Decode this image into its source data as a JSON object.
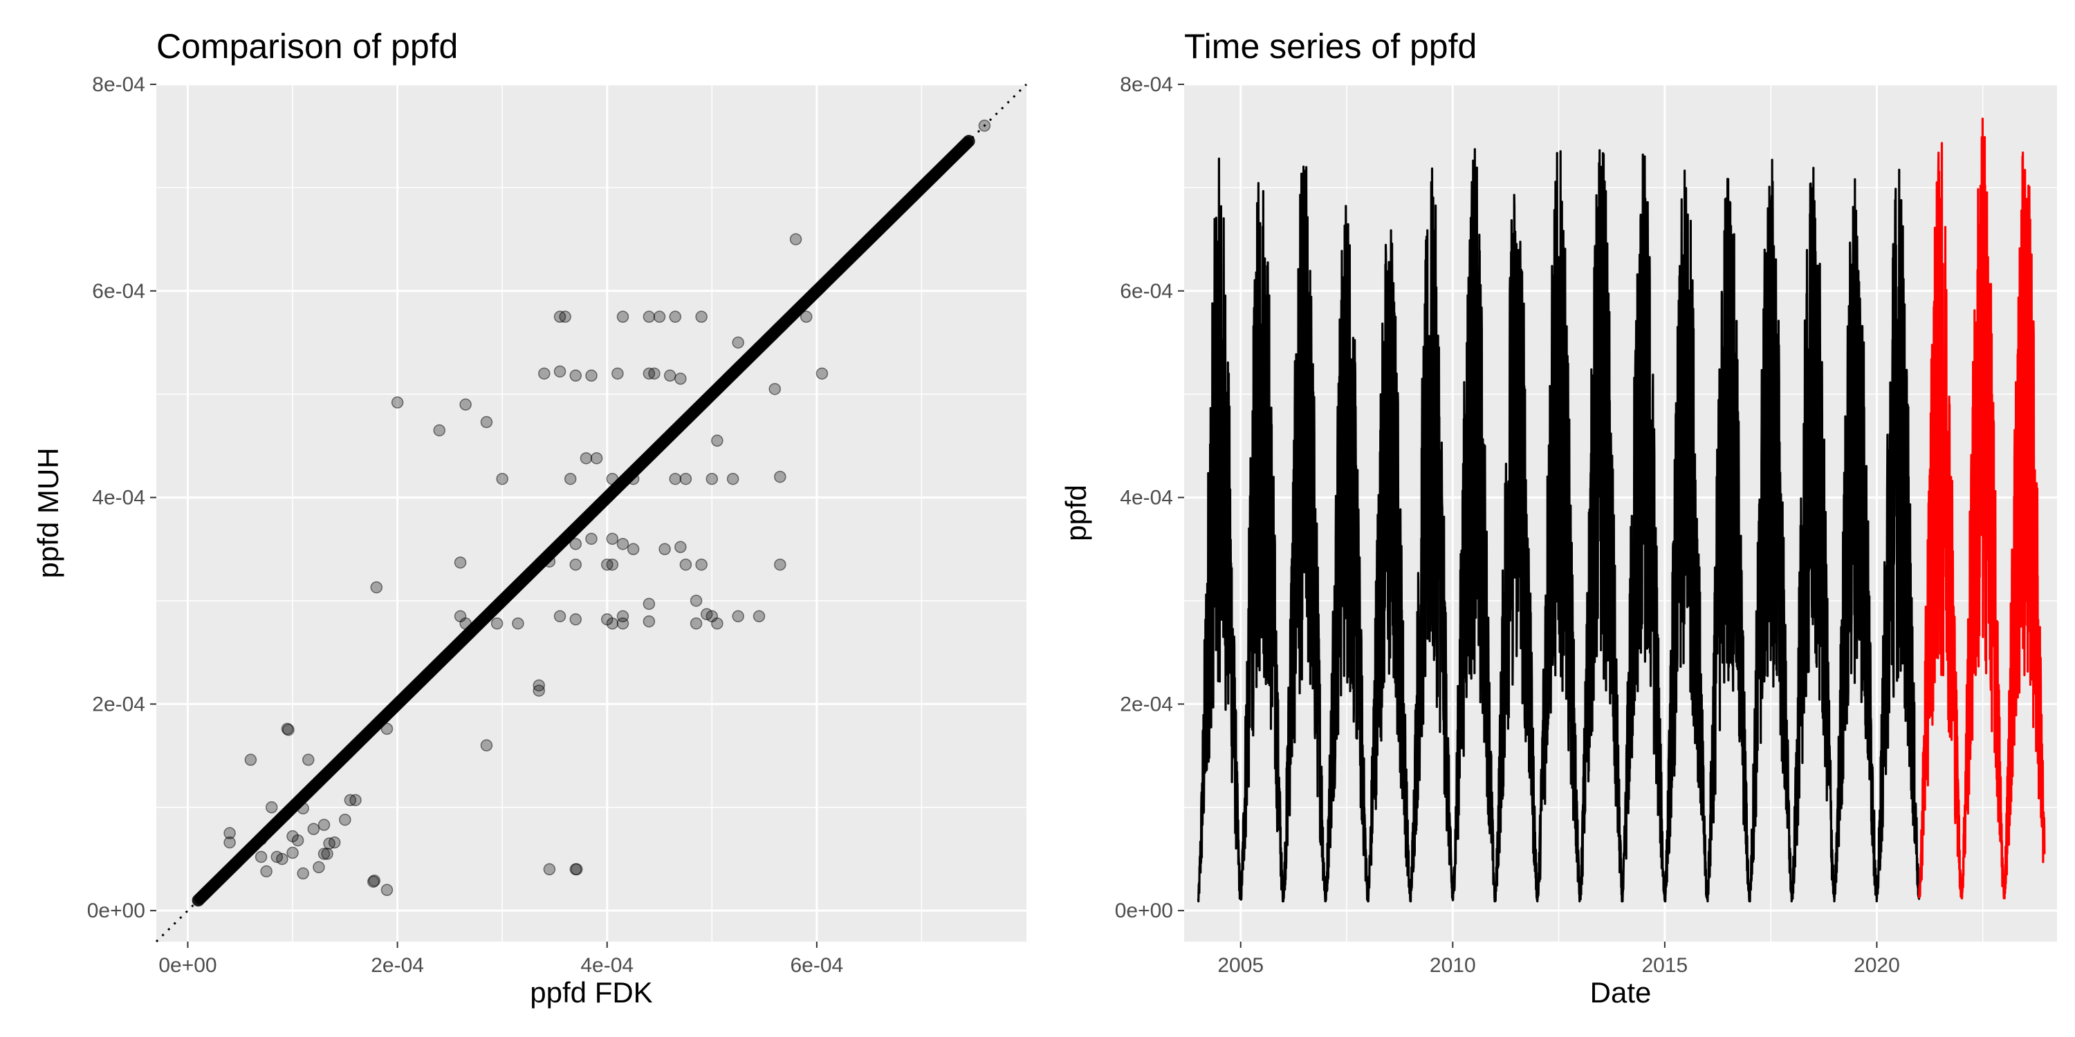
{
  "chart_data": [
    {
      "type": "scatter",
      "title": "Comparison of ppfd",
      "xlabel": "ppfd FDK",
      "ylabel": "ppfd MUH",
      "xlim": [
        -3e-05,
        0.0008
      ],
      "ylim": [
        -3e-05,
        0.0008
      ],
      "x_ticks": [
        0,
        0.0002,
        0.0004,
        0.0006
      ],
      "x_tick_labels": [
        "0e+00",
        "2e-04",
        "4e-04",
        "6e-04"
      ],
      "y_ticks": [
        0,
        0.0002,
        0.0004,
        0.0006,
        0.0008
      ],
      "y_tick_labels": [
        "0e+00",
        "2e-04",
        "4e-04",
        "6e-04",
        "8e-04"
      ],
      "grid": true,
      "reference_line": {
        "style": "dotted",
        "slope": 1,
        "intercept": 0
      },
      "dense_diagonal": {
        "from": 1e-05,
        "to": 0.000745,
        "count": 400
      },
      "point_color": "#000000",
      "point_opacity": 0.3,
      "points": [
        [
          0.00076,
          0.00076
        ],
        [
          0.00058,
          0.00065
        ],
        [
          0.00059,
          0.000575
        ],
        [
          0.00056,
          0.000505
        ],
        [
          0.000605,
          0.00052
        ],
        [
          0.000565,
          0.00042
        ],
        [
          0.000565,
          0.000335
        ],
        [
          0.000545,
          0.000285
        ],
        [
          0.000525,
          0.000285
        ],
        [
          0.000525,
          0.00055
        ],
        [
          0.00063,
          0.00063
        ],
        [
          0.000355,
          0.000575
        ],
        [
          0.00036,
          0.000575
        ],
        [
          0.000415,
          0.000575
        ],
        [
          0.00044,
          0.000575
        ],
        [
          0.00045,
          0.000575
        ],
        [
          0.000465,
          0.000575
        ],
        [
          0.00049,
          0.000575
        ],
        [
          0.00034,
          0.00052
        ],
        [
          0.000355,
          0.000522
        ],
        [
          0.00037,
          0.000518
        ],
        [
          0.000385,
          0.000518
        ],
        [
          0.00041,
          0.00052
        ],
        [
          0.00044,
          0.00052
        ],
        [
          0.000445,
          0.00052
        ],
        [
          0.00046,
          0.000518
        ],
        [
          0.00047,
          0.000515
        ],
        [
          0.0002,
          0.000492
        ],
        [
          0.000265,
          0.00049
        ],
        [
          0.00024,
          0.000465
        ],
        [
          0.000285,
          0.000473
        ],
        [
          0.000505,
          0.000455
        ],
        [
          0.00038,
          0.000438
        ],
        [
          0.00039,
          0.000438
        ],
        [
          0.0003,
          0.000418
        ],
        [
          0.000365,
          0.000418
        ],
        [
          0.000405,
          0.000418
        ],
        [
          0.000425,
          0.000418
        ],
        [
          0.000465,
          0.000418
        ],
        [
          0.000475,
          0.000418
        ],
        [
          0.0005,
          0.000418
        ],
        [
          0.00052,
          0.000418
        ],
        [
          0.000405,
          0.00036
        ],
        [
          0.000415,
          0.000355
        ],
        [
          0.000425,
          0.00035
        ],
        [
          0.000455,
          0.00035
        ],
        [
          0.00047,
          0.000352
        ],
        [
          0.000475,
          0.000335
        ],
        [
          0.00049,
          0.000335
        ],
        [
          0.000405,
          0.000335
        ],
        [
          0.0004,
          0.000335
        ],
        [
          0.00037,
          0.000335
        ],
        [
          0.000345,
          0.000338
        ],
        [
          0.00037,
          0.000355
        ],
        [
          0.000385,
          0.00036
        ],
        [
          0.00026,
          0.000337
        ],
        [
          0.00026,
          0.000285
        ],
        [
          0.000265,
          0.000278
        ],
        [
          0.000295,
          0.000278
        ],
        [
          0.000315,
          0.000278
        ],
        [
          0.000355,
          0.000285
        ],
        [
          0.00037,
          0.000282
        ],
        [
          0.0004,
          0.000282
        ],
        [
          0.000405,
          0.000278
        ],
        [
          0.000415,
          0.000285
        ],
        [
          0.000415,
          0.000278
        ],
        [
          0.00044,
          0.00028
        ],
        [
          0.00044,
          0.000297
        ],
        [
          0.000485,
          0.0003
        ],
        [
          0.000485,
          0.000278
        ],
        [
          0.000495,
          0.000287
        ],
        [
          0.0005,
          0.000285
        ],
        [
          0.000505,
          0.000278
        ],
        [
          0.000335,
          0.000218
        ],
        [
          0.000335,
          0.000213
        ],
        [
          0.00018,
          0.000313
        ],
        [
          0.00019,
          0.000176
        ],
        [
          0.000285,
          0.00016
        ],
        [
          0.000345,
          4e-05
        ],
        [
          0.00037,
          4e-05
        ],
        [
          0.000371,
          4e-05
        ],
        [
          9.5e-05,
          0.000176
        ],
        [
          9.6e-05,
          0.000175
        ],
        [
          6e-05,
          0.000146
        ],
        [
          0.000115,
          0.000146
        ],
        [
          0.00016,
          0.000107
        ],
        [
          0.000155,
          0.000107
        ],
        [
          0.00015,
          8.8e-05
        ],
        [
          0.00013,
          8.3e-05
        ],
        [
          0.000135,
          6.5e-05
        ],
        [
          0.00014,
          6.6e-05
        ],
        [
          0.00012,
          7.9e-05
        ],
        [
          0.0001,
          7.2e-05
        ],
        [
          0.000105,
          6.8e-05
        ],
        [
          0.00011,
          9.9e-05
        ],
        [
          8e-05,
          0.0001
        ],
        [
          4e-05,
          7.5e-05
        ],
        [
          4e-05,
          6.6e-05
        ],
        [
          7e-05,
          6.9e-05
        ],
        [
          7e-05,
          5.2e-05
        ],
        [
          8.5e-05,
          5.2e-05
        ],
        [
          0.0001,
          5.6e-05
        ],
        [
          7.5e-05,
          3.8e-05
        ],
        [
          0.00011,
          3.6e-05
        ],
        [
          0.000125,
          4.2e-05
        ],
        [
          0.00013,
          5.5e-05
        ],
        [
          0.000133,
          5.5e-05
        ],
        [
          0.000178,
          2.9e-05
        ],
        [
          0.000177,
          2.8e-05
        ],
        [
          9e-05,
          5e-05
        ],
        [
          0.00019,
          2e-05
        ]
      ]
    },
    {
      "type": "line",
      "title": "Time series of ppfd",
      "xlabel": "Date",
      "ylabel": "ppfd",
      "xlim": [
        "2003-09-01",
        "2024-04-01"
      ],
      "ylim": [
        -3e-05,
        0.0008
      ],
      "x_tick_labels": [
        "2005",
        "2010",
        "2015",
        "2020"
      ],
      "x_ticks": [
        "2005-01-01",
        "2010-01-01",
        "2015-01-01",
        "2020-01-01"
      ],
      "y_ticks": [
        0,
        0.0002,
        0.0004,
        0.0006,
        0.0008
      ],
      "y_tick_labels": [
        "0e+00",
        "2e-04",
        "4e-04",
        "6e-04",
        "8e-04"
      ],
      "grid": true,
      "series": [
        {
          "color": "#000000",
          "start": "2004-01-01",
          "end": "2021-01-01",
          "annual_peaks": [
            0.00073,
            0.000745,
            0.00074,
            0.000705,
            0.000685,
            0.000725,
            0.000745,
            0.000735,
            0.000745,
            0.00076,
            0.000745,
            0.000735,
            0.00074,
            0.000735,
            0.00074,
            0.000735,
            0.000735
          ],
          "winter_min": 1.5e-05
        },
        {
          "color": "#ff0000",
          "start": "2021-01-01",
          "end": "2023-12-15",
          "annual_peaks": [
            0.00075,
            0.000778,
            0.00075
          ],
          "winter_min": 2e-05
        }
      ]
    }
  ]
}
